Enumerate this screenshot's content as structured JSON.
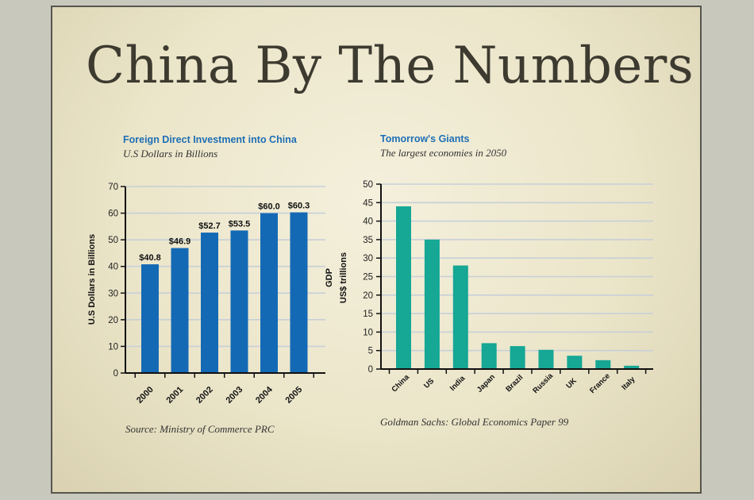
{
  "slide": {
    "title": "China By The Numbers"
  },
  "chart_data": [
    {
      "type": "bar",
      "title": "Foreign Direct Investment into China",
      "subtitle": "U.S Dollars in Billions",
      "ylabel": "U.S Dollars in Billions",
      "categories": [
        "2000",
        "2001",
        "2002",
        "2003",
        "2004",
        "2005"
      ],
      "values": [
        40.8,
        46.9,
        52.7,
        53.5,
        60.0,
        60.3
      ],
      "data_labels": [
        "$40.8",
        "$46.9",
        "$52.7",
        "$53.5",
        "$60.0",
        "$60.3"
      ],
      "yticks": [
        0,
        10,
        20,
        30,
        40,
        50,
        60,
        70
      ],
      "ylim": [
        0,
        70
      ],
      "grid": true,
      "bar_color": "#1469b5",
      "source": "Source: Ministry of Commerce PRC"
    },
    {
      "type": "bar",
      "title": "Tomorrow's Giants",
      "subtitle": "The largest economies in 2050",
      "ylabel": [
        "GDP",
        "US$ trillions"
      ],
      "categories": [
        "China",
        "US",
        "India",
        "Japan",
        "Brazil",
        "Russia",
        "UK",
        "France",
        "Italy"
      ],
      "values": [
        44,
        35,
        28,
        7,
        6.2,
        5.2,
        3.6,
        2.4,
        0.9
      ],
      "yticks": [
        0,
        5,
        10,
        15,
        20,
        25,
        30,
        35,
        40,
        45,
        50
      ],
      "ylim": [
        0,
        50
      ],
      "grid": true,
      "bar_color": "#16a795",
      "source": "Goldman Sachs: Global Economics Paper 99"
    }
  ]
}
